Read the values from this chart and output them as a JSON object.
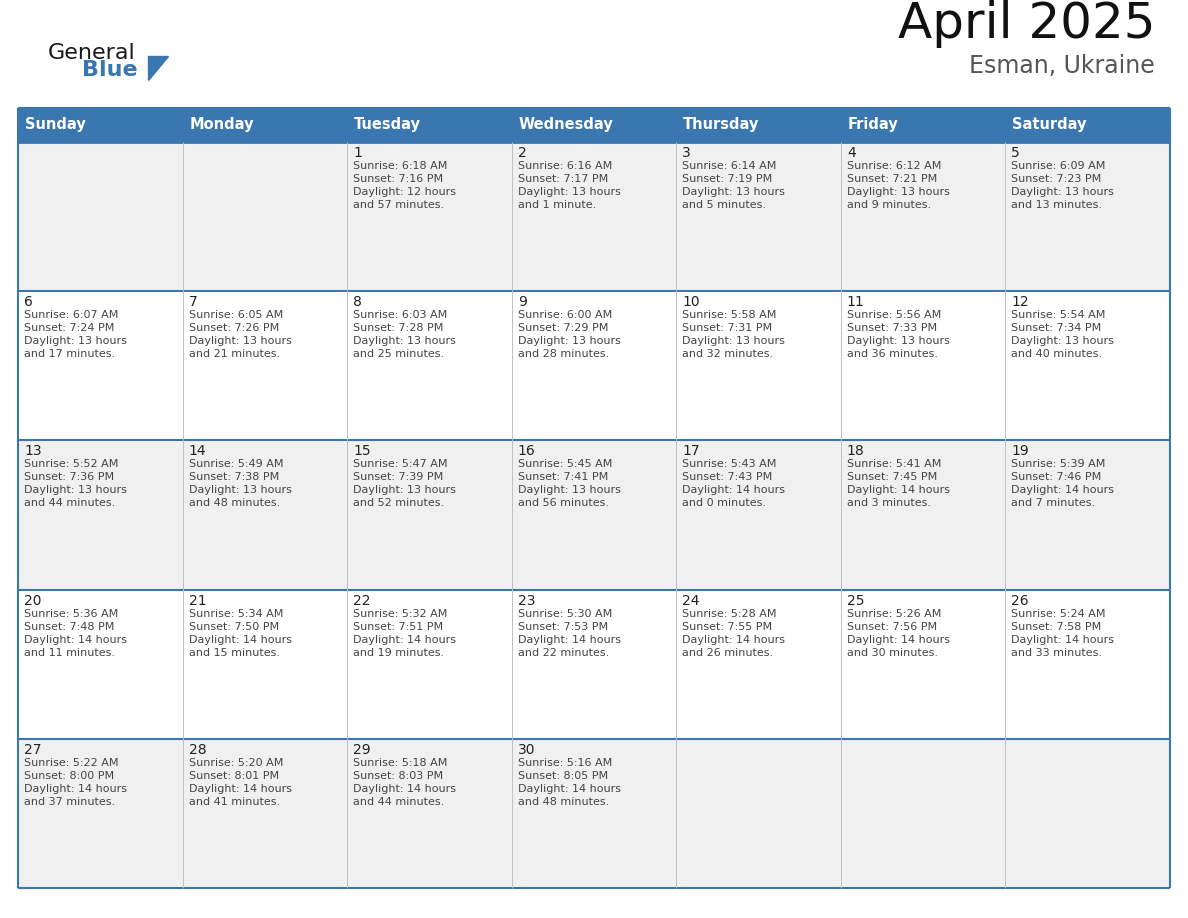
{
  "title": "April 2025",
  "subtitle": "Esman, Ukraine",
  "days_of_week": [
    "Sunday",
    "Monday",
    "Tuesday",
    "Wednesday",
    "Thursday",
    "Friday",
    "Saturday"
  ],
  "header_bg": "#3a76b0",
  "header_text": "#FFFFFF",
  "row_odd_bg": "#f0f0f0",
  "row_even_bg": "#FFFFFF",
  "border_color": "#3a76b0",
  "grid_line_color": "#c0c0c0",
  "day_num_color": "#222222",
  "cell_text_color": "#444444",
  "title_color": "#111111",
  "logo_general_color": "#1a1a1a",
  "logo_blue_color": "#3a76b0",
  "weeks": [
    [
      {
        "num": "",
        "sunrise": "",
        "sunset": "",
        "daylight1": "",
        "daylight2": ""
      },
      {
        "num": "",
        "sunrise": "",
        "sunset": "",
        "daylight1": "",
        "daylight2": ""
      },
      {
        "num": "1",
        "sunrise": "Sunrise: 6:18 AM",
        "sunset": "Sunset: 7:16 PM",
        "daylight1": "Daylight: 12 hours",
        "daylight2": "and 57 minutes."
      },
      {
        "num": "2",
        "sunrise": "Sunrise: 6:16 AM",
        "sunset": "Sunset: 7:17 PM",
        "daylight1": "Daylight: 13 hours",
        "daylight2": "and 1 minute."
      },
      {
        "num": "3",
        "sunrise": "Sunrise: 6:14 AM",
        "sunset": "Sunset: 7:19 PM",
        "daylight1": "Daylight: 13 hours",
        "daylight2": "and 5 minutes."
      },
      {
        "num": "4",
        "sunrise": "Sunrise: 6:12 AM",
        "sunset": "Sunset: 7:21 PM",
        "daylight1": "Daylight: 13 hours",
        "daylight2": "and 9 minutes."
      },
      {
        "num": "5",
        "sunrise": "Sunrise: 6:09 AM",
        "sunset": "Sunset: 7:23 PM",
        "daylight1": "Daylight: 13 hours",
        "daylight2": "and 13 minutes."
      }
    ],
    [
      {
        "num": "6",
        "sunrise": "Sunrise: 6:07 AM",
        "sunset": "Sunset: 7:24 PM",
        "daylight1": "Daylight: 13 hours",
        "daylight2": "and 17 minutes."
      },
      {
        "num": "7",
        "sunrise": "Sunrise: 6:05 AM",
        "sunset": "Sunset: 7:26 PM",
        "daylight1": "Daylight: 13 hours",
        "daylight2": "and 21 minutes."
      },
      {
        "num": "8",
        "sunrise": "Sunrise: 6:03 AM",
        "sunset": "Sunset: 7:28 PM",
        "daylight1": "Daylight: 13 hours",
        "daylight2": "and 25 minutes."
      },
      {
        "num": "9",
        "sunrise": "Sunrise: 6:00 AM",
        "sunset": "Sunset: 7:29 PM",
        "daylight1": "Daylight: 13 hours",
        "daylight2": "and 28 minutes."
      },
      {
        "num": "10",
        "sunrise": "Sunrise: 5:58 AM",
        "sunset": "Sunset: 7:31 PM",
        "daylight1": "Daylight: 13 hours",
        "daylight2": "and 32 minutes."
      },
      {
        "num": "11",
        "sunrise": "Sunrise: 5:56 AM",
        "sunset": "Sunset: 7:33 PM",
        "daylight1": "Daylight: 13 hours",
        "daylight2": "and 36 minutes."
      },
      {
        "num": "12",
        "sunrise": "Sunrise: 5:54 AM",
        "sunset": "Sunset: 7:34 PM",
        "daylight1": "Daylight: 13 hours",
        "daylight2": "and 40 minutes."
      }
    ],
    [
      {
        "num": "13",
        "sunrise": "Sunrise: 5:52 AM",
        "sunset": "Sunset: 7:36 PM",
        "daylight1": "Daylight: 13 hours",
        "daylight2": "and 44 minutes."
      },
      {
        "num": "14",
        "sunrise": "Sunrise: 5:49 AM",
        "sunset": "Sunset: 7:38 PM",
        "daylight1": "Daylight: 13 hours",
        "daylight2": "and 48 minutes."
      },
      {
        "num": "15",
        "sunrise": "Sunrise: 5:47 AM",
        "sunset": "Sunset: 7:39 PM",
        "daylight1": "Daylight: 13 hours",
        "daylight2": "and 52 minutes."
      },
      {
        "num": "16",
        "sunrise": "Sunrise: 5:45 AM",
        "sunset": "Sunset: 7:41 PM",
        "daylight1": "Daylight: 13 hours",
        "daylight2": "and 56 minutes."
      },
      {
        "num": "17",
        "sunrise": "Sunrise: 5:43 AM",
        "sunset": "Sunset: 7:43 PM",
        "daylight1": "Daylight: 14 hours",
        "daylight2": "and 0 minutes."
      },
      {
        "num": "18",
        "sunrise": "Sunrise: 5:41 AM",
        "sunset": "Sunset: 7:45 PM",
        "daylight1": "Daylight: 14 hours",
        "daylight2": "and 3 minutes."
      },
      {
        "num": "19",
        "sunrise": "Sunrise: 5:39 AM",
        "sunset": "Sunset: 7:46 PM",
        "daylight1": "Daylight: 14 hours",
        "daylight2": "and 7 minutes."
      }
    ],
    [
      {
        "num": "20",
        "sunrise": "Sunrise: 5:36 AM",
        "sunset": "Sunset: 7:48 PM",
        "daylight1": "Daylight: 14 hours",
        "daylight2": "and 11 minutes."
      },
      {
        "num": "21",
        "sunrise": "Sunrise: 5:34 AM",
        "sunset": "Sunset: 7:50 PM",
        "daylight1": "Daylight: 14 hours",
        "daylight2": "and 15 minutes."
      },
      {
        "num": "22",
        "sunrise": "Sunrise: 5:32 AM",
        "sunset": "Sunset: 7:51 PM",
        "daylight1": "Daylight: 14 hours",
        "daylight2": "and 19 minutes."
      },
      {
        "num": "23",
        "sunrise": "Sunrise: 5:30 AM",
        "sunset": "Sunset: 7:53 PM",
        "daylight1": "Daylight: 14 hours",
        "daylight2": "and 22 minutes."
      },
      {
        "num": "24",
        "sunrise": "Sunrise: 5:28 AM",
        "sunset": "Sunset: 7:55 PM",
        "daylight1": "Daylight: 14 hours",
        "daylight2": "and 26 minutes."
      },
      {
        "num": "25",
        "sunrise": "Sunrise: 5:26 AM",
        "sunset": "Sunset: 7:56 PM",
        "daylight1": "Daylight: 14 hours",
        "daylight2": "and 30 minutes."
      },
      {
        "num": "26",
        "sunrise": "Sunrise: 5:24 AM",
        "sunset": "Sunset: 7:58 PM",
        "daylight1": "Daylight: 14 hours",
        "daylight2": "and 33 minutes."
      }
    ],
    [
      {
        "num": "27",
        "sunrise": "Sunrise: 5:22 AM",
        "sunset": "Sunset: 8:00 PM",
        "daylight1": "Daylight: 14 hours",
        "daylight2": "and 37 minutes."
      },
      {
        "num": "28",
        "sunrise": "Sunrise: 5:20 AM",
        "sunset": "Sunset: 8:01 PM",
        "daylight1": "Daylight: 14 hours",
        "daylight2": "and 41 minutes."
      },
      {
        "num": "29",
        "sunrise": "Sunrise: 5:18 AM",
        "sunset": "Sunset: 8:03 PM",
        "daylight1": "Daylight: 14 hours",
        "daylight2": "and 44 minutes."
      },
      {
        "num": "30",
        "sunrise": "Sunrise: 5:16 AM",
        "sunset": "Sunset: 8:05 PM",
        "daylight1": "Daylight: 14 hours",
        "daylight2": "and 48 minutes."
      },
      {
        "num": "",
        "sunrise": "",
        "sunset": "",
        "daylight1": "",
        "daylight2": ""
      },
      {
        "num": "",
        "sunrise": "",
        "sunset": "",
        "daylight1": "",
        "daylight2": ""
      },
      {
        "num": "",
        "sunrise": "",
        "sunset": "",
        "daylight1": "",
        "daylight2": ""
      }
    ]
  ]
}
